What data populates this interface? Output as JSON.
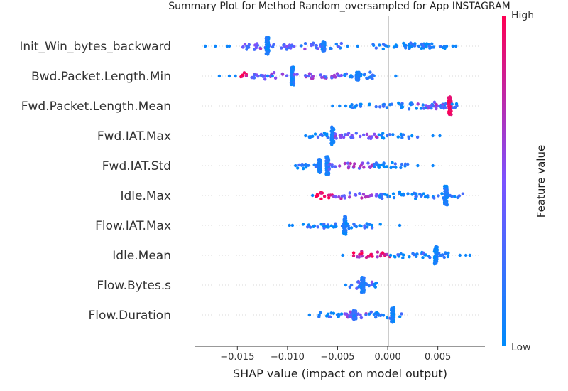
{
  "chart_data": {
    "type": "scatter",
    "title": "Summary Plot for Method Random_oversampled for App INSTAGRAM",
    "xlabel": "SHAP value (impact on model output)",
    "ylabel": "",
    "xlim": [
      -0.0192,
      0.0097
    ],
    "xticks": [
      -0.015,
      -0.01,
      -0.005,
      0.0,
      0.005
    ],
    "xtick_labels": [
      "−0.015",
      "−0.010",
      "−0.005",
      "0.000",
      "0.005"
    ],
    "features": [
      "Init_Win_bytes_backward",
      "Bwd.Packet.Length.Min",
      "Fwd.Packet.Length.Mean",
      "Fwd.IAT.Max",
      "Fwd.IAT.Std",
      "Idle.Max",
      "Flow.IAT.Max",
      "Idle.Mean",
      "Flow.Bytes.s",
      "Flow.Duration"
    ],
    "series": [
      {
        "feature": "Init_Win_bytes_backward",
        "segments": [
          {
            "x0": -0.0145,
            "x1": -0.01,
            "density": 0.55,
            "color": 0.45
          },
          {
            "x0": -0.012,
            "x1": -0.0119,
            "density": 1.0,
            "color": 0.1,
            "spike": 0.9
          },
          {
            "x0": -0.01,
            "x1": -0.0062,
            "density": 0.5,
            "color": 0.35
          },
          {
            "x0": -0.0064,
            "x1": -0.0063,
            "density": 1.0,
            "color": 0.1,
            "spike": 0.5
          },
          {
            "x0": -0.006,
            "x1": -0.0045,
            "density": 0.3,
            "color": 0.2
          },
          {
            "x0": -0.002,
            "x1": 0.006,
            "density": 0.35,
            "color": 0.05
          },
          {
            "x0": 0.001,
            "x1": 0.0045,
            "density": 0.6,
            "color": 0.05
          }
        ],
        "outliers": [
          -0.0182,
          -0.0172,
          -0.016,
          -0.0158,
          -0.004,
          -0.003,
          0.0065,
          0.0068
        ]
      },
      {
        "feature": "Bwd.Packet.Length.Min",
        "segments": [
          {
            "x0": -0.0148,
            "x1": -0.014,
            "density": 0.7,
            "color": 0.95
          },
          {
            "x0": -0.014,
            "x1": -0.01,
            "density": 0.45,
            "color": 0.4
          },
          {
            "x0": -0.0095,
            "x1": -0.0094,
            "density": 1.0,
            "color": 0.1,
            "spike": 0.9
          },
          {
            "x0": -0.0094,
            "x1": -0.0045,
            "density": 0.5,
            "color": 0.45
          },
          {
            "x0": -0.0045,
            "x1": -0.0012,
            "density": 0.6,
            "color": 0.1
          },
          {
            "x0": -0.003,
            "x1": -0.0029,
            "density": 1.0,
            "color": 0.1,
            "spike": 0.4
          }
        ],
        "outliers": [
          -0.0168,
          -0.0158,
          -0.0152,
          -0.012,
          -0.0115,
          0.0008
        ]
      },
      {
        "feature": "Fwd.Packet.Length.Mean",
        "segments": [
          {
            "x0": -0.0038,
            "x1": 0.006,
            "density": 0.45,
            "color": 0.05
          },
          {
            "x0": 0.003,
            "x1": 0.0058,
            "density": 0.6,
            "color": 0.45
          },
          {
            "x0": 0.0062,
            "x1": 0.0063,
            "density": 1.0,
            "color": 0.95,
            "spike": 0.9
          },
          {
            "x0": 0.0063,
            "x1": 0.007,
            "density": 0.5,
            "color": 0.1
          }
        ],
        "outliers": [
          -0.0055,
          -0.0048,
          -0.0042
        ]
      },
      {
        "feature": "Fwd.IAT.Max",
        "segments": [
          {
            "x0": -0.008,
            "x1": -0.0055,
            "density": 0.45,
            "color": 0.1
          },
          {
            "x0": -0.0055,
            "x1": -0.0054,
            "density": 1.0,
            "color": 0.1,
            "spike": 0.9
          },
          {
            "x0": -0.0054,
            "x1": -0.001,
            "density": 0.5,
            "color": 0.5
          },
          {
            "x0": -0.001,
            "x1": 0.003,
            "density": 0.4,
            "color": 0.05
          }
        ],
        "outliers": [
          -0.0082,
          0.0045,
          0.0052
        ]
      },
      {
        "feature": "Fwd.IAT.Std",
        "segments": [
          {
            "x0": -0.009,
            "x1": -0.007,
            "density": 0.5,
            "color": 0.1
          },
          {
            "x0": -0.0068,
            "x1": -0.0067,
            "density": 1.0,
            "color": 0.1,
            "spike": 0.7
          },
          {
            "x0": -0.006,
            "x1": -0.0059,
            "density": 1.0,
            "color": 0.1,
            "spike": 0.9
          },
          {
            "x0": -0.0059,
            "x1": -0.0015,
            "density": 0.5,
            "color": 0.5
          },
          {
            "x0": -0.0015,
            "x1": 0.002,
            "density": 0.6,
            "color": 0.05
          }
        ],
        "outliers": [
          -0.0092,
          0.003,
          0.0045
        ]
      },
      {
        "feature": "Idle.Max",
        "segments": [
          {
            "x0": -0.0072,
            "x1": -0.0055,
            "density": 0.65,
            "color": 0.95
          },
          {
            "x0": -0.0055,
            "x1": -0.001,
            "density": 0.45,
            "color": 0.55
          },
          {
            "x0": -0.001,
            "x1": 0.0075,
            "density": 0.55,
            "color": 0.05
          },
          {
            "x0": 0.0058,
            "x1": 0.0059,
            "density": 1.0,
            "color": 0.1,
            "spike": 0.95
          }
        ],
        "outliers": [
          -0.0075
        ]
      },
      {
        "feature": "Flow.IAT.Max",
        "segments": [
          {
            "x0": -0.0085,
            "x1": -0.0045,
            "density": 0.5,
            "color": 0.1
          },
          {
            "x0": -0.0043,
            "x1": -0.0042,
            "density": 1.0,
            "color": 0.1,
            "spike": 0.9
          },
          {
            "x0": -0.0042,
            "x1": -0.0005,
            "density": 0.45,
            "color": 0.1
          }
        ],
        "outliers": [
          -0.0098,
          -0.0095,
          0.0012
        ]
      },
      {
        "feature": "Idle.Mean",
        "segments": [
          {
            "x0": -0.0035,
            "x1": 0.0002,
            "density": 0.55,
            "color": 0.85
          },
          {
            "x0": 0.0002,
            "x1": 0.0065,
            "density": 0.5,
            "color": 0.1
          },
          {
            "x0": 0.0048,
            "x1": 0.0049,
            "density": 1.0,
            "color": 0.05,
            "spike": 0.9
          }
        ],
        "outliers": [
          -0.0045,
          0.0072,
          0.0078,
          0.0082
        ]
      },
      {
        "feature": "Flow.Bytes.s",
        "segments": [
          {
            "x0": -0.004,
            "x1": -0.0015,
            "density": 0.5,
            "color": 0.35
          },
          {
            "x0": -0.0025,
            "x1": -0.0024,
            "density": 1.0,
            "color": 0.1,
            "spike": 0.8
          },
          {
            "x0": -0.0015,
            "x1": -0.0008,
            "density": 0.35,
            "color": 0.05
          }
        ],
        "outliers": [
          -0.0042
        ]
      },
      {
        "feature": "Flow.Duration",
        "segments": [
          {
            "x0": -0.007,
            "x1": -0.0045,
            "density": 0.45,
            "color": 0.05
          },
          {
            "x0": -0.0045,
            "x1": -0.002,
            "density": 0.65,
            "color": 0.45
          },
          {
            "x0": -0.0033,
            "x1": -0.0032,
            "density": 1.0,
            "color": 0.2,
            "spike": 0.45
          },
          {
            "x0": -0.002,
            "x1": 0.0015,
            "density": 0.45,
            "color": 0.1
          },
          {
            "x0": 0.0005,
            "x1": 0.0006,
            "density": 1.0,
            "color": 0.05,
            "spike": 0.75
          }
        ],
        "outliers": [
          -0.0078
        ]
      }
    ],
    "colorbar": {
      "label": "Feature value",
      "high_label": "High",
      "low_label": "Low",
      "low_color": "#008bfb",
      "mid_color": "#7c52ff",
      "high_color": "#ff0052"
    },
    "zero_line_color": "#999999",
    "grid": false,
    "legend": "none"
  }
}
